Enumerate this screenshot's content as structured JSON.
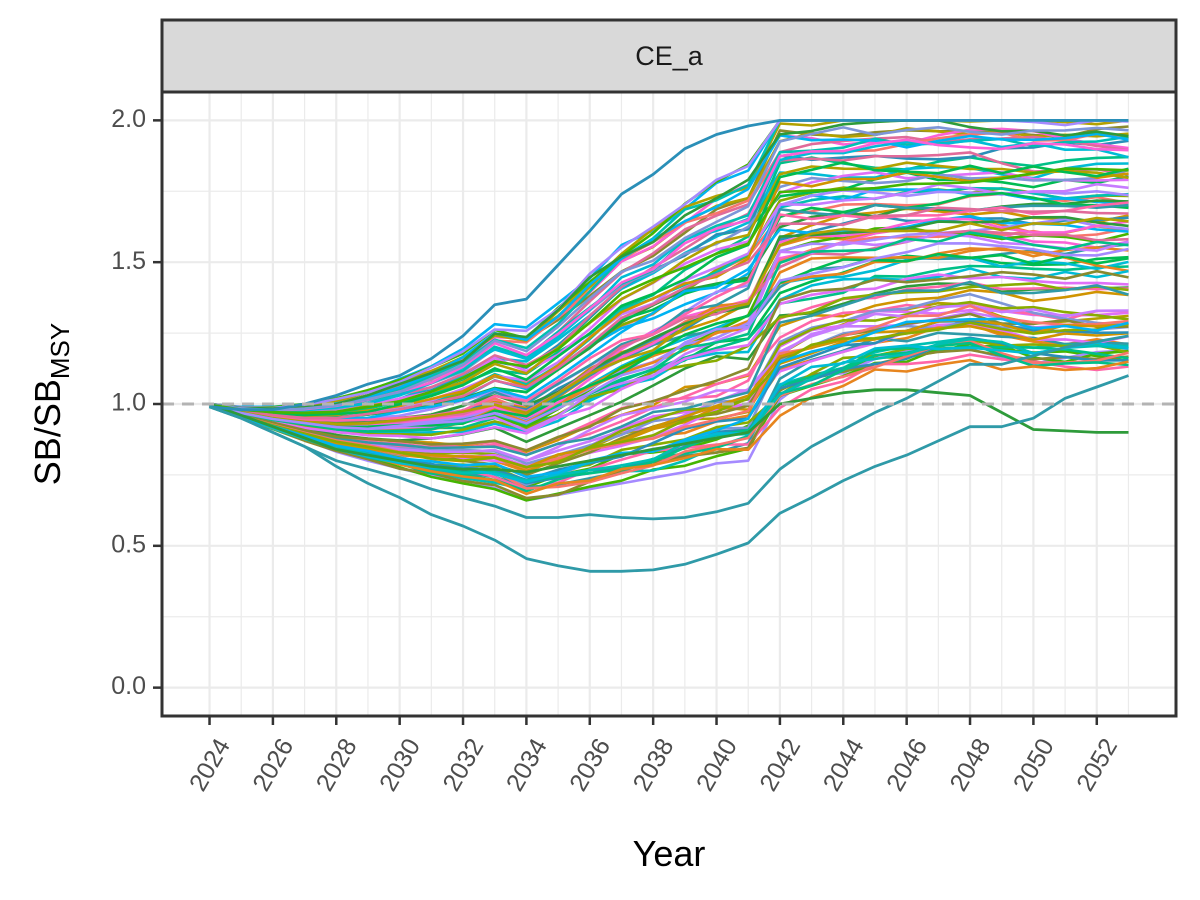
{
  "chart_data": {
    "type": "line",
    "facet_label": "CE_a",
    "xlabel": "Year",
    "ylabel_main": "SB/SB",
    "ylabel_subscript": "MSY",
    "x_ticks": [
      "2024",
      "2026",
      "2028",
      "2030",
      "2032",
      "2034",
      "2036",
      "2038",
      "2040",
      "2042",
      "2044",
      "2046",
      "2048",
      "2050",
      "2052"
    ],
    "y_ticks": [
      "0.0",
      "0.5",
      "1.0",
      "1.5",
      "2.0"
    ],
    "xlim": [
      2022.5,
      2054.5
    ],
    "ylim": [
      -0.1,
      2.1
    ],
    "reference_line": {
      "y": 1.0,
      "style": "dashed",
      "color": "#b3b3b3"
    },
    "grid": true,
    "legend": "none",
    "palette": [
      "#F8766D",
      "#E7851E",
      "#D09400",
      "#B2A100",
      "#89AC00",
      "#45B500",
      "#00BC51",
      "#00C087",
      "#00C0B2",
      "#00BCD6",
      "#00B3F2",
      "#A58AFF",
      "#DF70F8",
      "#FB61D7",
      "#FF66A8",
      "#2A8FB8",
      "#2F9AA8",
      "#8A8A2E",
      "#2E9B3A",
      "#C77CFF",
      "#7E96D8",
      "#E06B9A"
    ],
    "highlighted_series": [
      {
        "color": "#2E9B3A",
        "years": [
          2024,
          2025,
          2026,
          2027,
          2028,
          2029,
          2030,
          2031,
          2032,
          2033,
          2034,
          2035,
          2036,
          2037,
          2038,
          2039,
          2040,
          2041,
          2042,
          2043,
          2044,
          2045,
          2046,
          2047,
          2048,
          2049,
          2050,
          2051,
          2052,
          2053
        ],
        "values": [
          1.0,
          0.96,
          0.92,
          0.88,
          0.84,
          0.82,
          0.8,
          0.78,
          0.77,
          0.77,
          0.76,
          0.78,
          0.8,
          0.82,
          0.84,
          0.86,
          0.88,
          0.9,
          1.0,
          1.02,
          1.04,
          1.05,
          1.05,
          1.04,
          1.03,
          0.97,
          0.91,
          0.905,
          0.9,
          0.9
        ]
      },
      {
        "color": "#2F9AA8",
        "years": [
          2024,
          2025,
          2026,
          2027,
          2028,
          2029,
          2030,
          2031,
          2032,
          2033,
          2034,
          2035,
          2036,
          2037,
          2038,
          2039,
          2040,
          2041,
          2042,
          2043,
          2044,
          2045,
          2046,
          2047,
          2048,
          2049,
          2050,
          2051,
          2052,
          2053
        ],
        "values": [
          0.99,
          0.95,
          0.9,
          0.85,
          0.78,
          0.72,
          0.67,
          0.61,
          0.57,
          0.52,
          0.455,
          0.43,
          0.41,
          0.41,
          0.415,
          0.435,
          0.47,
          0.51,
          0.615,
          0.67,
          0.73,
          0.78,
          0.82,
          0.87,
          0.92,
          0.92,
          0.95,
          1.02,
          1.06,
          1.1
        ]
      },
      {
        "color": "#2A8FB8",
        "years": [
          2024,
          2025,
          2026,
          2027,
          2028,
          2029,
          2030,
          2031,
          2032,
          2033,
          2034,
          2035,
          2036,
          2037,
          2038,
          2039,
          2040,
          2041,
          2042,
          2043,
          2044,
          2045,
          2046,
          2047,
          2048,
          2049,
          2050,
          2051,
          2052,
          2053
        ],
        "values": [
          0.99,
          0.98,
          0.98,
          1.0,
          1.03,
          1.07,
          1.1,
          1.16,
          1.24,
          1.35,
          1.37,
          1.49,
          1.61,
          1.74,
          1.81,
          1.9,
          1.95,
          1.98,
          2.0,
          2.0,
          2.0,
          2.0,
          2.0,
          2.0,
          2.0,
          2.0,
          2.0,
          2.0,
          2.0,
          2.0
        ]
      },
      {
        "color": "#2F9AA8",
        "years": [
          2024,
          2025,
          2026,
          2027,
          2028,
          2029,
          2030,
          2031,
          2032,
          2033,
          2034,
          2035,
          2036,
          2037,
          2038,
          2039,
          2040,
          2041,
          2042,
          2043,
          2044,
          2045,
          2046,
          2047,
          2048,
          2049,
          2050,
          2051,
          2052,
          2053
        ],
        "values": [
          0.99,
          0.95,
          0.9,
          0.85,
          0.8,
          0.77,
          0.74,
          0.7,
          0.67,
          0.64,
          0.6,
          0.6,
          0.61,
          0.6,
          0.595,
          0.6,
          0.62,
          0.65,
          0.77,
          0.85,
          0.91,
          0.97,
          1.02,
          1.08,
          1.14,
          1.14,
          1.17,
          1.2,
          1.22,
          1.24
        ]
      }
    ],
    "series_count": 100,
    "envelope": {
      "years": [
        2024,
        2025,
        2026,
        2027,
        2028,
        2029,
        2030,
        2031,
        2032,
        2033,
        2034,
        2035,
        2036,
        2037,
        2038,
        2039,
        2040,
        2041,
        2042,
        2043,
        2044,
        2045,
        2046,
        2047,
        2048,
        2049,
        2050,
        2051,
        2052,
        2053
      ],
      "lower": [
        0.99,
        0.95,
        0.91,
        0.87,
        0.83,
        0.8,
        0.77,
        0.74,
        0.72,
        0.7,
        0.66,
        0.68,
        0.7,
        0.72,
        0.74,
        0.76,
        0.78,
        0.8,
        0.9,
        0.96,
        1.0,
        1.04,
        1.06,
        1.08,
        1.1,
        1.08,
        1.06,
        1.06,
        1.06,
        1.06
      ],
      "upper": [
        1.0,
        0.99,
        0.99,
        1.0,
        1.02,
        1.05,
        1.09,
        1.14,
        1.2,
        1.29,
        1.27,
        1.36,
        1.47,
        1.58,
        1.65,
        1.74,
        1.8,
        1.85,
        2.0,
        2.0,
        2.0,
        2.0,
        2.0,
        2.0,
        2.0,
        2.0,
        2.0,
        2.0,
        2.0,
        2.0
      ]
    }
  }
}
